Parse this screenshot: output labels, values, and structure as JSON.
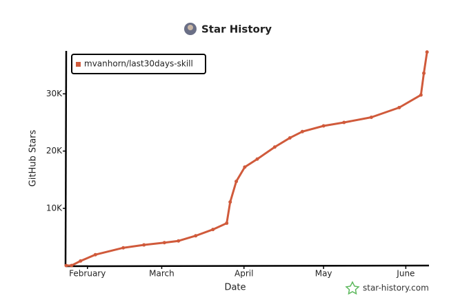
{
  "chart_data": {
    "type": "line",
    "title": "Star History",
    "x_label": "Date",
    "y_label": "GitHub Stars",
    "watermark": "star-history.com",
    "legend": "top-left",
    "series": [
      {
        "name": "mvanhorn/last30days-skill",
        "color": "#d05a3b",
        "x": [
          24,
          26,
          29.4,
          35,
          45.5,
          53.3,
          61,
          66.3,
          72.8,
          79.3,
          84.5,
          85.8,
          88.1,
          91.3,
          96,
          102.6,
          108.3,
          113,
          121,
          128.7,
          139,
          149.5,
          157.7,
          158.8,
          160
        ],
        "values": [
          0,
          0,
          800,
          1900,
          3100,
          3600,
          4000,
          4300,
          5200,
          6300,
          7400,
          11100,
          14700,
          17200,
          18600,
          20700,
          22300,
          23400,
          24400,
          25000,
          25900,
          27600,
          29800,
          33600,
          37300
        ]
      }
    ],
    "xlim": [
      24,
      161
    ],
    "xticks": [
      {
        "value": 32,
        "label": "February"
      },
      {
        "value": 60,
        "label": "March"
      },
      {
        "value": 91,
        "label": "April"
      },
      {
        "value": 121,
        "label": "May"
      },
      {
        "value": 152,
        "label": "June"
      }
    ],
    "ylim": [
      0,
      37500
    ],
    "yticks": [
      {
        "value": 10000,
        "label": "10K"
      },
      {
        "value": 20000,
        "label": "20K"
      },
      {
        "value": 30000,
        "label": "30K"
      }
    ]
  }
}
